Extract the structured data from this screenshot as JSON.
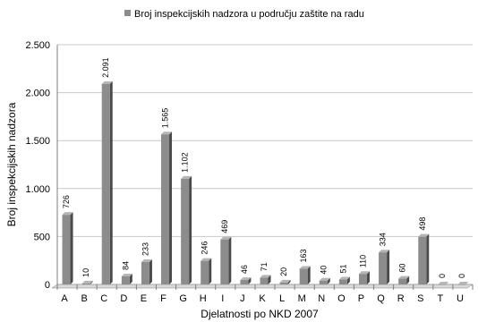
{
  "chart_data": {
    "type": "bar",
    "categories": [
      "A",
      "B",
      "C",
      "D",
      "E",
      "F",
      "G",
      "H",
      "I",
      "J",
      "K",
      "L",
      "M",
      "N",
      "O",
      "P",
      "Q",
      "R",
      "S",
      "T",
      "U"
    ],
    "series": [
      {
        "name": "Broj inspekcijskih nadzora u području zaštite na radu",
        "values": [
          726,
          10,
          2091,
          84,
          233,
          1565,
          1102,
          246,
          469,
          46,
          71,
          20,
          163,
          40,
          51,
          110,
          334,
          60,
          498,
          0,
          0
        ]
      }
    ],
    "data_labels": [
      "726",
      "10",
      "2.091",
      "84",
      "233",
      "1.565",
      "1.102",
      "246",
      "469",
      "46",
      "71",
      "20",
      "163",
      "40",
      "51",
      "110",
      "334",
      "60",
      "498",
      "0",
      "0"
    ],
    "y_ticks": [
      0,
      500,
      1000,
      1500,
      2000,
      2500
    ],
    "y_tick_labels": [
      "0",
      "500",
      "1.000",
      "1.500",
      "2.000",
      "2.500"
    ],
    "ylim": [
      0,
      2500
    ],
    "xlabel": "Djelatnosti po NKD 2007",
    "ylabel": "Broj inspekcijskih nadzora",
    "legend_position": "top",
    "grid": true,
    "colors": {
      "bar_front": "#8c8c8c",
      "bar_side": "#4a4a4a",
      "bar_top": "#b5b5b5",
      "grid": "#c8c8c8",
      "axis": "#7f7f7f",
      "floor": "#d9d9d9"
    }
  }
}
